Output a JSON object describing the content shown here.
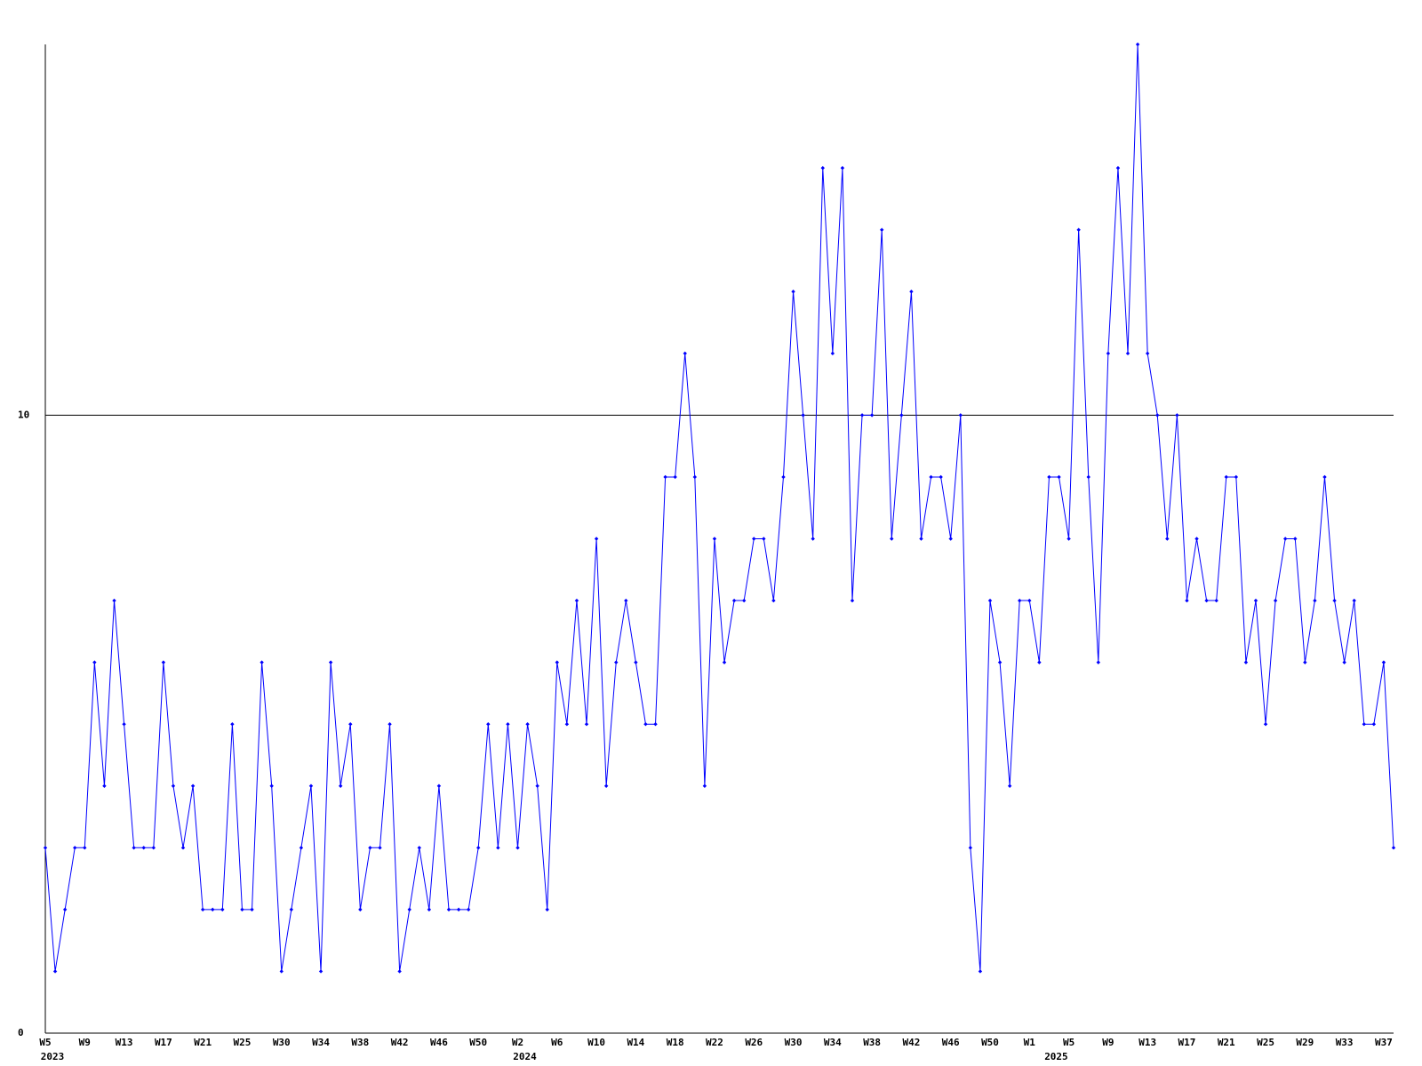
{
  "chart_data": {
    "type": "line",
    "color": "#0000ff",
    "grid_color": "#000000",
    "categories": [
      "W5",
      null,
      null,
      null,
      "W9",
      null,
      null,
      null,
      "W13",
      null,
      null,
      null,
      "W17",
      null,
      null,
      null,
      "W21",
      null,
      null,
      null,
      "W25",
      null,
      null,
      null,
      "W30",
      null,
      null,
      null,
      "W34",
      null,
      null,
      null,
      "W38",
      null,
      null,
      null,
      "W42",
      null,
      null,
      null,
      "W46",
      null,
      null,
      null,
      "W50",
      null,
      null,
      null,
      "W2",
      null,
      null,
      null,
      "W6",
      null,
      null,
      null,
      "W10",
      null,
      null,
      null,
      "W14",
      null,
      null,
      null,
      "W18",
      null,
      null,
      null,
      "W22",
      null,
      null,
      null,
      "W26",
      null,
      null,
      null,
      "W30",
      null,
      null,
      null,
      "W34",
      null,
      null,
      null,
      "W38",
      null,
      null,
      null,
      "W42",
      null,
      null,
      null,
      "W46",
      null,
      null,
      null,
      "W50",
      null,
      null,
      null,
      "W1",
      null,
      null,
      null,
      "W5",
      null,
      null,
      null,
      "W9",
      null,
      null,
      null,
      "W13",
      null,
      null,
      null,
      "W17",
      null,
      null,
      null,
      "W21",
      null,
      null,
      null,
      "W25",
      null,
      null,
      null,
      "W29",
      null,
      null,
      null,
      "W33",
      null,
      null,
      null,
      "W37",
      null
    ],
    "category_years": [
      "2023",
      null,
      null,
      null,
      null,
      null,
      null,
      null,
      null,
      null,
      null,
      null,
      null,
      null,
      null,
      null,
      null,
      null,
      null,
      null,
      null,
      null,
      null,
      null,
      null,
      null,
      null,
      null,
      null,
      null,
      null,
      null,
      null,
      null,
      null,
      null,
      null,
      null,
      null,
      null,
      null,
      null,
      null,
      null,
      null,
      null,
      null,
      null,
      "2024",
      null,
      null,
      null,
      null,
      null,
      null,
      null,
      null,
      null,
      null,
      null,
      null,
      null,
      null,
      null,
      null,
      null,
      null,
      null,
      null,
      null,
      null,
      null,
      null,
      null,
      null,
      null,
      null,
      null,
      null,
      null,
      null,
      null,
      null,
      null,
      null,
      null,
      null,
      null,
      null,
      null,
      null,
      null,
      null,
      null,
      null,
      null,
      null,
      null,
      null,
      null,
      null,
      null,
      "2025",
      null,
      null,
      null,
      null,
      null,
      null,
      null,
      null,
      null,
      null,
      null,
      null,
      null,
      null,
      null,
      null,
      null,
      null,
      null,
      null,
      null,
      null,
      null,
      null,
      null,
      null,
      null,
      null,
      null,
      null,
      null,
      null,
      null,
      null,
      null,
      null,
      null
    ],
    "values": [
      3,
      1,
      2,
      3,
      3,
      6,
      4,
      7,
      5,
      3,
      3,
      3,
      6,
      4,
      3,
      4,
      2,
      2,
      2,
      5,
      2,
      2,
      6,
      4,
      1,
      2,
      3,
      4,
      1,
      6,
      4,
      5,
      2,
      3,
      3,
      5,
      1,
      2,
      3,
      2,
      4,
      2,
      2,
      2,
      3,
      5,
      3,
      5,
      3,
      5,
      4,
      2,
      6,
      5,
      7,
      5,
      8,
      4,
      6,
      7,
      6,
      5,
      5,
      9,
      9,
      11,
      9,
      4,
      8,
      6,
      7,
      7,
      8,
      8,
      7,
      9,
      12,
      10,
      8,
      14,
      11,
      14,
      7,
      10,
      10,
      13,
      8,
      10,
      12,
      8,
      9,
      9,
      8,
      10,
      3,
      1,
      7,
      6,
      4,
      7,
      7,
      6,
      9,
      9,
      8,
      13,
      9,
      6,
      11,
      14,
      11,
      16,
      11,
      10,
      8,
      10,
      7,
      8,
      7,
      7,
      9,
      9,
      6,
      7,
      5,
      7,
      8,
      8,
      6,
      7,
      9,
      7,
      6,
      7,
      5,
      5,
      6,
      3
    ],
    "ylim": [
      0,
      16
    ],
    "yticks": [
      0,
      10
    ],
    "grid": true
  }
}
